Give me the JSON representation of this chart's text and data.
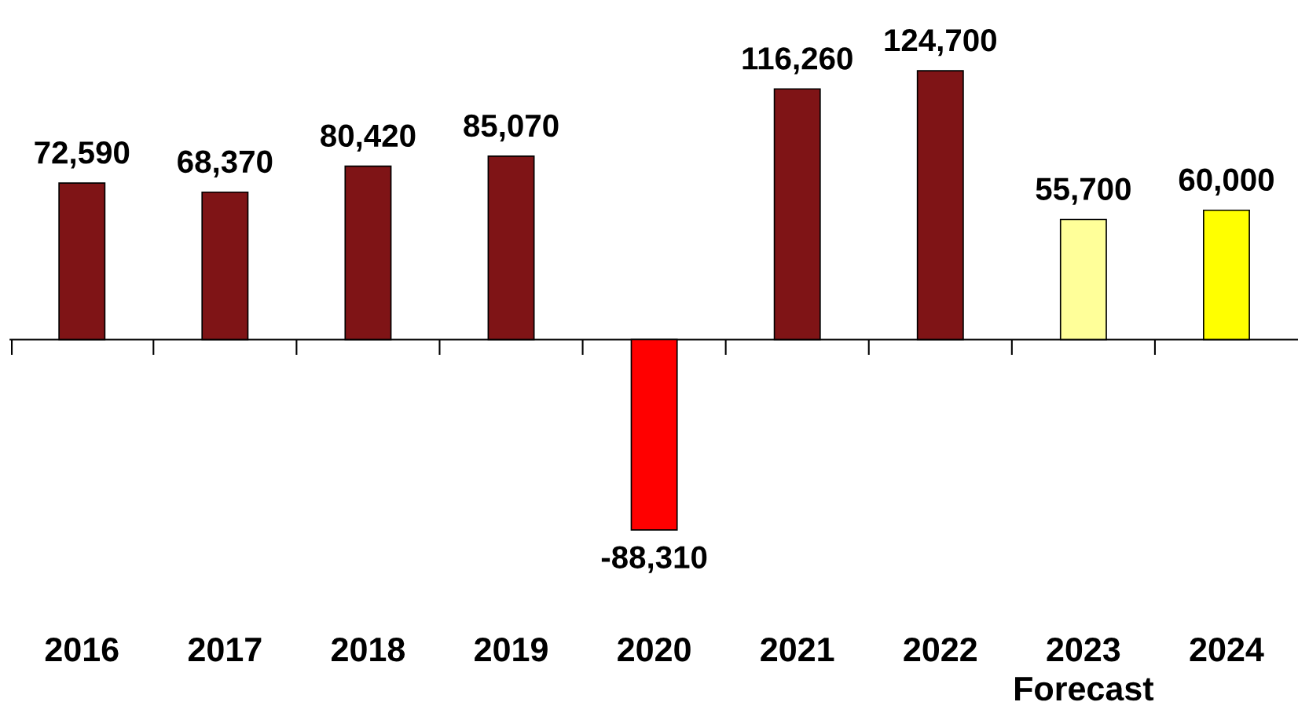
{
  "chart_data": {
    "type": "bar",
    "categories": [
      "2016",
      "2017",
      "2018",
      "2019",
      "2020",
      "2021",
      "2022",
      "2023",
      "2024"
    ],
    "values": [
      72590,
      68370,
      80420,
      85070,
      -88310,
      116260,
      124700,
      55700,
      60000
    ],
    "colors": [
      "#7f1416",
      "#7f1416",
      "#7f1416",
      "#7f1416",
      "#ff0000",
      "#7f1416",
      "#7f1416",
      "#ffff99",
      "#ffff00"
    ],
    "value_labels": [
      "72,590",
      "68,370",
      "80,420",
      "85,070",
      "-88,310",
      "116,260",
      "124,700",
      "55,700",
      "60,000"
    ],
    "annotations": [
      "Forecast"
    ],
    "grid": false,
    "legend": false
  }
}
